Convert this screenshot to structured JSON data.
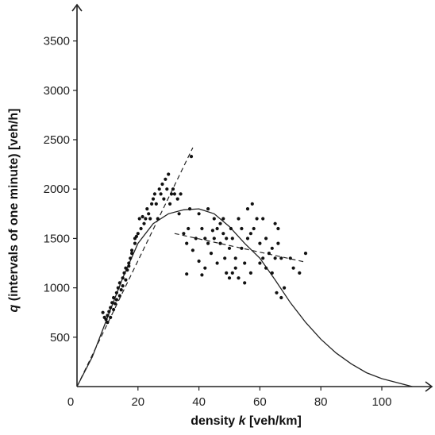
{
  "chart_data": {
    "type": "scatter",
    "title": "",
    "xlabel": {
      "prefix": "density ",
      "var": "k",
      "unit": " [veh/km]"
    },
    "ylabel": {
      "var": "q",
      "rest": " (intervals of one minute) [veh/h]"
    },
    "xlim": [
      0,
      115
    ],
    "ylim": [
      0,
      3800
    ],
    "x_ticks": [
      0,
      20,
      40,
      60,
      80,
      100
    ],
    "y_ticks": [
      500,
      1000,
      1500,
      2000,
      2500,
      3000,
      3500
    ],
    "grid": false,
    "points": [
      [
        8.5,
        750
      ],
      [
        9,
        700
      ],
      [
        9.5,
        680
      ],
      [
        10,
        720
      ],
      [
        10,
        650
      ],
      [
        10.5,
        760
      ],
      [
        11,
        800
      ],
      [
        11,
        700
      ],
      [
        11.5,
        850
      ],
      [
        12,
        780
      ],
      [
        12,
        900
      ],
      [
        12.5,
        840
      ],
      [
        13,
        950
      ],
      [
        13,
        880
      ],
      [
        13.5,
        1000
      ],
      [
        14,
        920
      ],
      [
        14,
        1050
      ],
      [
        14.5,
        980
      ],
      [
        15,
        1100
      ],
      [
        15,
        1020
      ],
      [
        15.5,
        1150
      ],
      [
        16,
        1200
      ],
      [
        16,
        1080
      ],
      [
        16.5,
        1180
      ],
      [
        17,
        1250
      ],
      [
        17,
        1220
      ],
      [
        17.5,
        1300
      ],
      [
        18,
        1350
      ],
      [
        18,
        1380
      ],
      [
        19,
        1450
      ],
      [
        19,
        1500
      ],
      [
        19.5,
        1520
      ],
      [
        20,
        1550
      ],
      [
        20.5,
        1700
      ],
      [
        21,
        1600
      ],
      [
        21.5,
        1720
      ],
      [
        22,
        1650
      ],
      [
        22.5,
        1700
      ],
      [
        23,
        1800
      ],
      [
        23.5,
        1750
      ],
      [
        24,
        1700
      ],
      [
        24.5,
        1850
      ],
      [
        25,
        1900
      ],
      [
        25.5,
        1950
      ],
      [
        26,
        1850
      ],
      [
        26.5,
        1700
      ],
      [
        27,
        2000
      ],
      [
        27.5,
        1950
      ],
      [
        28,
        2050
      ],
      [
        28.5,
        1900
      ],
      [
        29,
        2100
      ],
      [
        29.5,
        2000
      ],
      [
        30,
        2150
      ],
      [
        30.5,
        1850
      ],
      [
        31,
        1950
      ],
      [
        31.5,
        2000
      ],
      [
        32,
        1950
      ],
      [
        33,
        1900
      ],
      [
        33.5,
        1750
      ],
      [
        34,
        1950
      ],
      [
        35,
        1550
      ],
      [
        36,
        1450
      ],
      [
        36,
        1140
      ],
      [
        36.5,
        1600
      ],
      [
        37,
        1800
      ],
      [
        37.5,
        2330
      ],
      [
        38,
        1380
      ],
      [
        39,
        1500
      ],
      [
        40,
        1750
      ],
      [
        40,
        1270
      ],
      [
        41,
        1600
      ],
      [
        41,
        1130
      ],
      [
        42,
        1500
      ],
      [
        42,
        1200
      ],
      [
        43,
        1800
      ],
      [
        43,
        1450
      ],
      [
        44,
        1350
      ],
      [
        44.5,
        1580
      ],
      [
        45,
        1700
      ],
      [
        45,
        1500
      ],
      [
        46,
        1600
      ],
      [
        46,
        1250
      ],
      [
        47,
        1650
      ],
      [
        47,
        1450
      ],
      [
        48,
        1550
      ],
      [
        48,
        1700
      ],
      [
        48.5,
        1300
      ],
      [
        49,
        1500
      ],
      [
        49,
        1150
      ],
      [
        50,
        1400
      ],
      [
        50,
        1100
      ],
      [
        50.5,
        1600
      ],
      [
        51,
        1500
      ],
      [
        51,
        1150
      ],
      [
        52,
        1300
      ],
      [
        52,
        1200
      ],
      [
        53,
        1700
      ],
      [
        53,
        1100
      ],
      [
        54,
        1600
      ],
      [
        54,
        1400
      ],
      [
        55,
        1250
      ],
      [
        55,
        1050
      ],
      [
        56,
        1800
      ],
      [
        56,
        1500
      ],
      [
        57,
        1550
      ],
      [
        57,
        1150
      ],
      [
        57.5,
        1850
      ],
      [
        58,
        1600
      ],
      [
        59,
        1700
      ],
      [
        60,
        1450
      ],
      [
        60,
        1250
      ],
      [
        61,
        1700
      ],
      [
        61,
        1300
      ],
      [
        62,
        1500
      ],
      [
        62,
        1200
      ],
      [
        63,
        1350
      ],
      [
        64,
        1400
      ],
      [
        64,
        1150
      ],
      [
        65,
        1650
      ],
      [
        65,
        1300
      ],
      [
        65.5,
        950
      ],
      [
        66,
        1600
      ],
      [
        66,
        1450
      ],
      [
        67,
        1300
      ],
      [
        67,
        900
      ],
      [
        68,
        1000
      ],
      [
        70,
        1300
      ],
      [
        71,
        1200
      ],
      [
        73,
        1150
      ],
      [
        75,
        1350
      ]
    ],
    "fit_curve": [
      [
        0,
        0
      ],
      [
        5,
        300
      ],
      [
        10,
        700
      ],
      [
        15,
        1100
      ],
      [
        20,
        1450
      ],
      [
        25,
        1650
      ],
      [
        30,
        1750
      ],
      [
        35,
        1790
      ],
      [
        40,
        1800
      ],
      [
        45,
        1750
      ],
      [
        50,
        1620
      ],
      [
        55,
        1450
      ],
      [
        60,
        1300
      ],
      [
        65,
        1080
      ],
      [
        70,
        850
      ],
      [
        75,
        650
      ],
      [
        80,
        480
      ],
      [
        85,
        340
      ],
      [
        90,
        230
      ],
      [
        95,
        140
      ],
      [
        100,
        80
      ],
      [
        105,
        40
      ],
      [
        110,
        0
      ]
    ],
    "free_flow_line": [
      [
        0,
        0
      ],
      [
        38,
        2420
      ]
    ],
    "congested_line": [
      [
        32,
        1550
      ],
      [
        75,
        1260
      ]
    ]
  }
}
